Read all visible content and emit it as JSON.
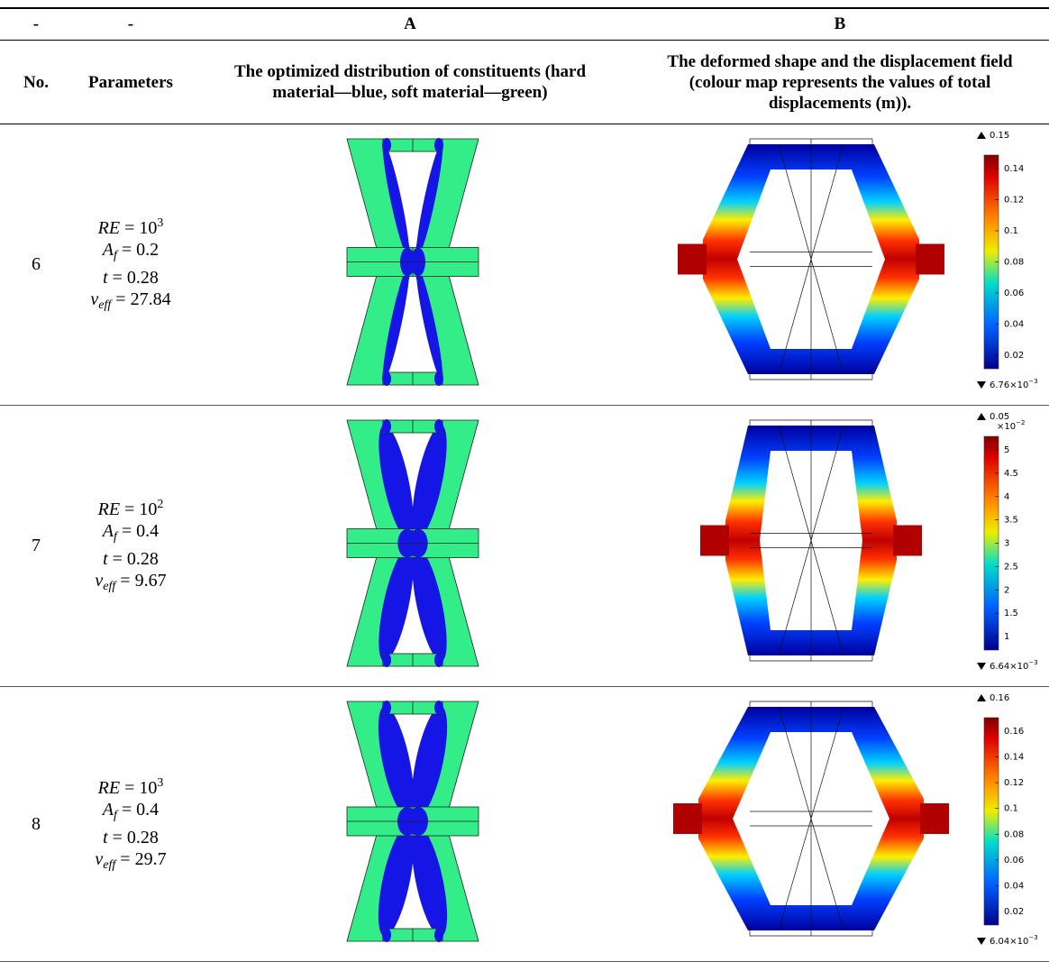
{
  "table": {
    "header": [
      [
        "-",
        "-",
        "A",
        "B"
      ],
      [
        "No.",
        "Parameters",
        "The optimized distribution of constituents (hard material—blue, soft material—green)",
        "The deformed shape and the displacement field (colour map represents the values of total displacements (m))."
      ]
    ],
    "rows": [
      {
        "no": "6",
        "params": [
          [
            {
              "i": "RE"
            },
            {
              "t": " = 10"
            },
            {
              "sup": "3"
            }
          ],
          [
            {
              "i": "A"
            },
            {
              "sub": "f"
            },
            {
              "t": " = 0.2"
            }
          ],
          [
            {
              "i": "t"
            },
            {
              "t": " = 0.28"
            }
          ],
          [
            {
              "i": "ν"
            },
            {
              "sub": "eff"
            },
            {
              "t": " = 27.84"
            }
          ]
        ],
        "colorbar": {
          "max": 0.15,
          "ticks": [
            0.02,
            0.04,
            0.06,
            0.08,
            0.1,
            0.12,
            0.14
          ],
          "min": {
            "base": "6.76×10",
            "exp": "−3"
          }
        }
      },
      {
        "no": "7",
        "params": [
          [
            {
              "i": "RE"
            },
            {
              "t": " = 10"
            },
            {
              "sup": "2"
            }
          ],
          [
            {
              "i": "A"
            },
            {
              "sub": "f"
            },
            {
              "t": " = 0.4"
            }
          ],
          [
            {
              "i": "t"
            },
            {
              "t": " = 0.28"
            }
          ],
          [
            {
              "i": "ν"
            },
            {
              "sub": "eff"
            },
            {
              "t": " = 9.67"
            }
          ]
        ],
        "colorbar": {
          "max": 0.05,
          "multiplier": {
            "base": "×10",
            "exp": "−2"
          },
          "ticks": [
            1,
            1.5,
            2,
            2.5,
            3,
            3.5,
            4,
            4.5,
            5
          ],
          "min": {
            "base": "6.64×10",
            "exp": "−3"
          }
        }
      },
      {
        "no": "8",
        "params": [
          [
            {
              "i": "RE"
            },
            {
              "t": " = 10"
            },
            {
              "sup": "3"
            }
          ],
          [
            {
              "i": "A"
            },
            {
              "sub": "f"
            },
            {
              "t": " = 0.4"
            }
          ],
          [
            {
              "i": "t"
            },
            {
              "t": " = 0.28"
            }
          ],
          [
            {
              "i": "ν"
            },
            {
              "sub": "eff"
            },
            {
              "t": " = 29.7"
            }
          ]
        ],
        "colorbar": {
          "max": 0.16,
          "ticks": [
            0.02,
            0.04,
            0.06,
            0.08,
            0.1,
            0.12,
            0.14,
            0.16
          ],
          "min": {
            "base": "6.04×10",
            "exp": "−3"
          }
        }
      }
    ]
  }
}
